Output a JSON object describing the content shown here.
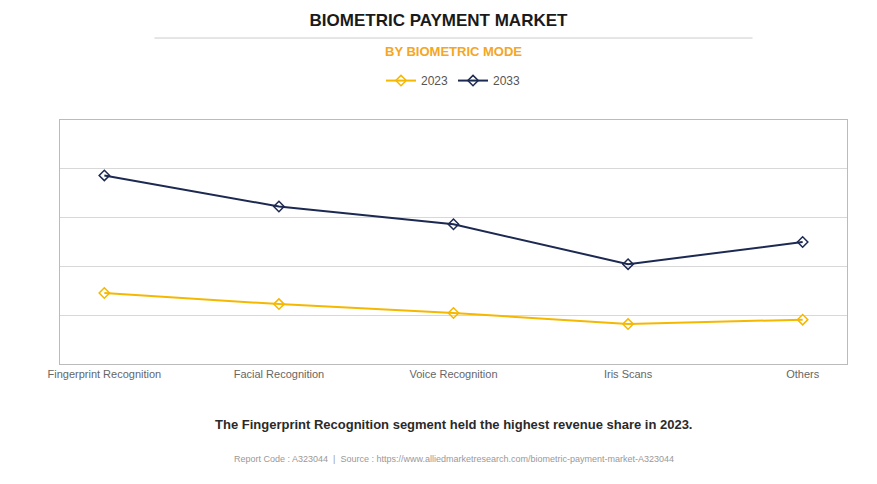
{
  "chart_data": {
    "type": "line",
    "title": "BIOMETRIC PAYMENT MARKET",
    "subtitle": "BY BIOMETRIC MODE",
    "subtitle_color": "#F5A623",
    "categories": [
      "Fingerprint Recognition",
      "Facial Recognition",
      "Voice Recognition",
      "Iris Scans",
      "Others"
    ],
    "series": [
      {
        "name": "2023",
        "color": "#F5B800",
        "marker": "diamond",
        "values": [
          3.2,
          2.7,
          2.3,
          1.8,
          2.0
        ]
      },
      {
        "name": "2033",
        "color": "#1C2951",
        "marker": "diamond",
        "values": [
          8.5,
          7.1,
          6.3,
          4.5,
          5.5
        ]
      }
    ],
    "ylim": [
      0,
      11
    ],
    "yticks": [
      0,
      2.2,
      4.4,
      6.6,
      8.8,
      11
    ],
    "grid": true,
    "tick_labels": "x",
    "legend": "top",
    "annotations": [
      "The Fingerprint Recognition segment held the highest revenue share in 2023.",
      "Report Code : A323044  |  Source : https://www.alliedmarketresearch.com/biometric-payment-market-A323044"
    ]
  }
}
